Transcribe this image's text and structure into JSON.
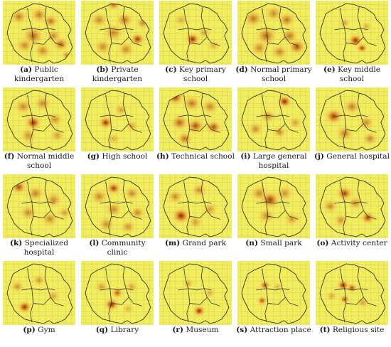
{
  "colors": {
    "background": "#f2ee5a",
    "heat_low": "#f3c453",
    "heat_mid": "#d9771a",
    "heat_high": "#7a2a08",
    "boundary": "#3a3a2a",
    "roads": "#b9b785"
  },
  "panels": [
    {
      "letter": "(a)",
      "label": "Public kindergarten",
      "hotspots": [
        [
          0.22,
          0.25,
          0.1,
          0.55
        ],
        [
          0.5,
          0.22,
          0.1,
          0.55
        ],
        [
          0.66,
          0.32,
          0.09,
          0.6
        ],
        [
          0.42,
          0.55,
          0.12,
          0.7
        ],
        [
          0.7,
          0.55,
          0.09,
          0.5
        ],
        [
          0.3,
          0.7,
          0.1,
          0.5
        ],
        [
          0.8,
          0.68,
          0.09,
          0.7
        ],
        [
          0.55,
          0.78,
          0.1,
          0.5
        ],
        [
          0.88,
          0.85,
          0.06,
          0.5
        ]
      ]
    },
    {
      "letter": "(b)",
      "label": "Private kindergarten",
      "hotspots": [
        [
          0.45,
          0.05,
          0.08,
          0.8
        ],
        [
          0.25,
          0.3,
          0.1,
          0.5
        ],
        [
          0.6,
          0.3,
          0.1,
          0.6
        ],
        [
          0.45,
          0.5,
          0.12,
          0.5
        ],
        [
          0.78,
          0.6,
          0.08,
          0.9
        ],
        [
          0.3,
          0.72,
          0.1,
          0.5
        ],
        [
          0.62,
          0.76,
          0.1,
          0.5
        ],
        [
          0.85,
          0.35,
          0.08,
          0.5
        ]
      ]
    },
    {
      "letter": "(c)",
      "label": "Key primary school",
      "hotspots": [
        [
          0.46,
          0.6,
          0.08,
          1.0
        ],
        [
          0.62,
          0.5,
          0.08,
          0.35
        ],
        [
          0.3,
          0.3,
          0.09,
          0.3
        ],
        [
          0.75,
          0.7,
          0.08,
          0.3
        ]
      ]
    },
    {
      "letter": "(d)",
      "label": "Normal primary school",
      "hotspots": [
        [
          0.22,
          0.28,
          0.11,
          0.6
        ],
        [
          0.5,
          0.2,
          0.1,
          0.5
        ],
        [
          0.68,
          0.3,
          0.1,
          0.6
        ],
        [
          0.4,
          0.55,
          0.12,
          0.7
        ],
        [
          0.72,
          0.55,
          0.1,
          0.6
        ],
        [
          0.3,
          0.74,
          0.1,
          0.5
        ],
        [
          0.82,
          0.72,
          0.1,
          0.8
        ],
        [
          0.58,
          0.8,
          0.1,
          0.5
        ]
      ]
    },
    {
      "letter": "(e)",
      "label": "Key middle school",
      "hotspots": [
        [
          0.55,
          0.62,
          0.08,
          1.0
        ],
        [
          0.64,
          0.74,
          0.06,
          0.9
        ],
        [
          0.4,
          0.35,
          0.07,
          0.35
        ],
        [
          0.7,
          0.4,
          0.07,
          0.3
        ]
      ]
    },
    {
      "letter": "(f)",
      "label": "Normal middle school",
      "hotspots": [
        [
          0.42,
          0.55,
          0.09,
          1.0
        ],
        [
          0.28,
          0.3,
          0.1,
          0.5
        ],
        [
          0.55,
          0.25,
          0.1,
          0.5
        ],
        [
          0.72,
          0.5,
          0.1,
          0.45
        ],
        [
          0.35,
          0.75,
          0.1,
          0.45
        ],
        [
          0.75,
          0.75,
          0.09,
          0.4
        ]
      ]
    },
    {
      "letter": "(g)",
      "label": "High school",
      "hotspots": [
        [
          0.34,
          0.55,
          0.08,
          0.95
        ],
        [
          0.55,
          0.35,
          0.08,
          0.4
        ],
        [
          0.7,
          0.6,
          0.08,
          0.35
        ],
        [
          0.45,
          0.8,
          0.08,
          0.3
        ]
      ]
    },
    {
      "letter": "(h)",
      "label": "Technical school",
      "hotspots": [
        [
          0.22,
          0.15,
          0.1,
          0.9
        ],
        [
          0.45,
          0.25,
          0.1,
          0.6
        ],
        [
          0.7,
          0.3,
          0.1,
          0.5
        ],
        [
          0.28,
          0.55,
          0.1,
          0.7
        ],
        [
          0.5,
          0.6,
          0.1,
          0.8
        ],
        [
          0.75,
          0.62,
          0.09,
          0.8
        ],
        [
          0.35,
          0.8,
          0.09,
          0.6
        ]
      ]
    },
    {
      "letter": "(i)",
      "label": "Large general hospital",
      "hotspots": [
        [
          0.65,
          0.22,
          0.08,
          1.0
        ],
        [
          0.42,
          0.45,
          0.09,
          0.5
        ],
        [
          0.25,
          0.65,
          0.09,
          0.5
        ],
        [
          0.58,
          0.7,
          0.08,
          0.5
        ],
        [
          0.8,
          0.55,
          0.08,
          0.4
        ]
      ]
    },
    {
      "letter": "(j)",
      "label": "General hospital",
      "hotspots": [
        [
          0.25,
          0.45,
          0.1,
          0.9
        ],
        [
          0.5,
          0.3,
          0.1,
          0.55
        ],
        [
          0.7,
          0.55,
          0.09,
          0.5
        ],
        [
          0.4,
          0.72,
          0.1,
          0.55
        ],
        [
          0.75,
          0.8,
          0.09,
          0.5
        ]
      ]
    },
    {
      "letter": "(k)",
      "label": "Specialized hospital",
      "hotspots": [
        [
          0.22,
          0.2,
          0.09,
          0.8
        ],
        [
          0.45,
          0.3,
          0.1,
          0.55
        ],
        [
          0.7,
          0.4,
          0.1,
          0.5
        ],
        [
          0.35,
          0.6,
          0.1,
          0.5
        ],
        [
          0.65,
          0.7,
          0.1,
          0.5
        ],
        [
          0.85,
          0.6,
          0.08,
          0.4
        ]
      ]
    },
    {
      "letter": "(l)",
      "label": "Community clinic",
      "hotspots": [
        [
          0.45,
          0.22,
          0.08,
          0.9
        ],
        [
          0.25,
          0.35,
          0.1,
          0.5
        ],
        [
          0.7,
          0.3,
          0.09,
          0.5
        ],
        [
          0.45,
          0.55,
          0.1,
          0.5
        ],
        [
          0.78,
          0.6,
          0.09,
          0.5
        ],
        [
          0.35,
          0.78,
          0.1,
          0.45
        ],
        [
          0.65,
          0.82,
          0.09,
          0.45
        ]
      ]
    },
    {
      "letter": "(m)",
      "label": "Grand park",
      "hotspots": [
        [
          0.3,
          0.65,
          0.1,
          1.0
        ],
        [
          0.22,
          0.35,
          0.09,
          0.5
        ],
        [
          0.55,
          0.25,
          0.09,
          0.5
        ],
        [
          0.7,
          0.55,
          0.09,
          0.4
        ],
        [
          0.5,
          0.75,
          0.09,
          0.4
        ]
      ]
    },
    {
      "letter": "(n)",
      "label": "Small park",
      "hotspots": [
        [
          0.45,
          0.4,
          0.11,
          0.9
        ],
        [
          0.3,
          0.3,
          0.1,
          0.5
        ],
        [
          0.65,
          0.3,
          0.1,
          0.45
        ],
        [
          0.4,
          0.65,
          0.1,
          0.5
        ],
        [
          0.75,
          0.7,
          0.09,
          0.45
        ]
      ]
    },
    {
      "letter": "(o)",
      "label": "Activity center",
      "hotspots": [
        [
          0.4,
          0.3,
          0.09,
          0.85
        ],
        [
          0.2,
          0.5,
          0.09,
          0.5
        ],
        [
          0.55,
          0.45,
          0.09,
          0.5
        ],
        [
          0.72,
          0.68,
          0.08,
          0.85
        ],
        [
          0.35,
          0.72,
          0.09,
          0.45
        ]
      ]
    },
    {
      "letter": "(p)",
      "label": "Gym",
      "hotspots": [
        [
          0.3,
          0.72,
          0.08,
          0.95
        ],
        [
          0.2,
          0.4,
          0.08,
          0.45
        ],
        [
          0.5,
          0.3,
          0.08,
          0.4
        ],
        [
          0.7,
          0.55,
          0.08,
          0.35
        ]
      ]
    },
    {
      "letter": "(q)",
      "label": "Library",
      "hotspots": [
        [
          0.42,
          0.68,
          0.08,
          1.0
        ],
        [
          0.5,
          0.5,
          0.07,
          0.7
        ],
        [
          0.28,
          0.4,
          0.08,
          0.4
        ],
        [
          0.7,
          0.4,
          0.08,
          0.35
        ],
        [
          0.65,
          0.75,
          0.07,
          0.3
        ]
      ]
    },
    {
      "letter": "(r)",
      "label": "Museum",
      "hotspots": [
        [
          0.55,
          0.78,
          0.07,
          1.0
        ],
        [
          0.4,
          0.35,
          0.07,
          0.35
        ],
        [
          0.7,
          0.5,
          0.07,
          0.3
        ]
      ]
    },
    {
      "letter": "(s)",
      "label": "Attraction place",
      "hotspots": [
        [
          0.38,
          0.38,
          0.06,
          0.85
        ],
        [
          0.34,
          0.62,
          0.06,
          0.75
        ],
        [
          0.55,
          0.4,
          0.06,
          0.3
        ]
      ]
    },
    {
      "letter": "(t)",
      "label": "Religious site",
      "hotspots": [
        [
          0.38,
          0.38,
          0.07,
          1.0
        ],
        [
          0.5,
          0.42,
          0.06,
          0.8
        ],
        [
          0.4,
          0.6,
          0.06,
          0.75
        ],
        [
          0.65,
          0.65,
          0.07,
          0.4
        ],
        [
          0.22,
          0.55,
          0.07,
          0.35
        ]
      ]
    }
  ]
}
